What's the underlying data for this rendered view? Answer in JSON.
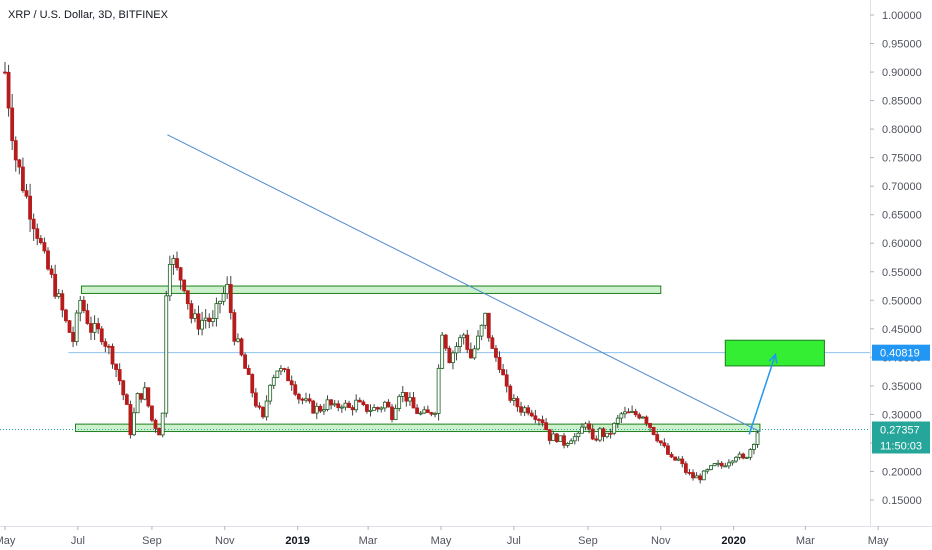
{
  "title": "XRP / U.S. Dollar, 3D, BITFINEX",
  "colors": {
    "up": "#26a69a",
    "down": "#ef5350",
    "wick": "#444444",
    "zone_fill": "#c8f0c8",
    "zone_stroke": "#1e7d1e",
    "target_fill": "#33ee33",
    "trendline": "#4a8cd0",
    "hline": "#8fc3ef",
    "current_line": "#26a69a",
    "badge_blue": "#2196f3",
    "badge_green": "#26a69a"
  },
  "price_badges": {
    "hline_value": "0.40819",
    "current_value": "0.27357",
    "countdown": "11:50:03"
  },
  "chart_data": {
    "type": "candlestick",
    "title": "XRP / U.S. Dollar, 3D, BITFINEX",
    "y_axis": {
      "side": "right",
      "ticks": [
        "1.00000",
        "0.95000",
        "0.90000",
        "0.85000",
        "0.80000",
        "0.75000",
        "0.70000",
        "0.65000",
        "0.60000",
        "0.55000",
        "0.50000",
        "0.45000",
        "0.40000",
        "0.35000",
        "0.30000",
        "0.25000",
        "0.20000",
        "0.15000"
      ],
      "ylim": [
        0.1,
        1.02
      ]
    },
    "x_axis": {
      "ticks": [
        {
          "label": "May",
          "t": 0,
          "bold": false
        },
        {
          "label": "Jul",
          "t": 61,
          "bold": false
        },
        {
          "label": "Sep",
          "t": 123,
          "bold": false
        },
        {
          "label": "Nov",
          "t": 184,
          "bold": false
        },
        {
          "label": "2019",
          "t": 245,
          "bold": true
        },
        {
          "label": "Mar",
          "t": 304,
          "bold": false
        },
        {
          "label": "May",
          "t": 365,
          "bold": false
        },
        {
          "label": "Jul",
          "t": 426,
          "bold": false
        },
        {
          "label": "Sep",
          "t": 488,
          "bold": false
        },
        {
          "label": "Nov",
          "t": 549,
          "bold": false
        },
        {
          "label": "2020",
          "t": 610,
          "bold": true
        },
        {
          "label": "Mar",
          "t": 670,
          "bold": false
        },
        {
          "label": "May",
          "t": 731,
          "bold": false
        }
      ],
      "xlim": [
        0,
        745
      ]
    },
    "candles_close_path": [
      [
        0,
        0.9
      ],
      [
        9,
        0.75
      ],
      [
        18,
        0.68
      ],
      [
        27,
        0.62
      ],
      [
        33,
        0.57
      ],
      [
        42,
        0.52
      ],
      [
        51,
        0.46
      ],
      [
        57,
        0.43
      ],
      [
        63,
        0.5
      ],
      [
        72,
        0.45
      ],
      [
        81,
        0.44
      ],
      [
        90,
        0.4
      ],
      [
        96,
        0.36
      ],
      [
        102,
        0.31
      ],
      [
        105,
        0.27
      ],
      [
        111,
        0.33
      ],
      [
        117,
        0.34
      ],
      [
        123,
        0.29
      ],
      [
        129,
        0.27
      ],
      [
        132,
        0.3
      ],
      [
        135,
        0.52
      ],
      [
        138,
        0.58
      ],
      [
        144,
        0.55
      ],
      [
        150,
        0.53
      ],
      [
        156,
        0.47
      ],
      [
        162,
        0.46
      ],
      [
        168,
        0.47
      ],
      [
        174,
        0.46
      ],
      [
        180,
        0.5
      ],
      [
        186,
        0.52
      ],
      [
        192,
        0.44
      ],
      [
        198,
        0.4
      ],
      [
        204,
        0.36
      ],
      [
        210,
        0.32
      ],
      [
        216,
        0.29
      ],
      [
        222,
        0.36
      ],
      [
        228,
        0.38
      ],
      [
        234,
        0.37
      ],
      [
        240,
        0.36
      ],
      [
        246,
        0.33
      ],
      [
        252,
        0.32
      ],
      [
        258,
        0.31
      ],
      [
        264,
        0.31
      ],
      [
        270,
        0.32
      ],
      [
        276,
        0.31
      ],
      [
        282,
        0.32
      ],
      [
        288,
        0.31
      ],
      [
        294,
        0.32
      ],
      [
        300,
        0.31
      ],
      [
        306,
        0.31
      ],
      [
        312,
        0.31
      ],
      [
        318,
        0.32
      ],
      [
        324,
        0.3
      ],
      [
        330,
        0.34
      ],
      [
        336,
        0.33
      ],
      [
        342,
        0.31
      ],
      [
        348,
        0.3
      ],
      [
        354,
        0.3
      ],
      [
        360,
        0.31
      ],
      [
        366,
        0.45
      ],
      [
        372,
        0.4
      ],
      [
        378,
        0.42
      ],
      [
        384,
        0.44
      ],
      [
        390,
        0.4
      ],
      [
        396,
        0.43
      ],
      [
        402,
        0.47
      ],
      [
        408,
        0.41
      ],
      [
        414,
        0.39
      ],
      [
        420,
        0.34
      ],
      [
        426,
        0.32
      ],
      [
        432,
        0.31
      ],
      [
        438,
        0.31
      ],
      [
        444,
        0.3
      ],
      [
        450,
        0.29
      ],
      [
        456,
        0.26
      ],
      [
        462,
        0.26
      ],
      [
        468,
        0.25
      ],
      [
        474,
        0.26
      ],
      [
        480,
        0.26
      ],
      [
        486,
        0.29
      ],
      [
        492,
        0.25
      ],
      [
        498,
        0.27
      ],
      [
        504,
        0.26
      ],
      [
        510,
        0.28
      ],
      [
        516,
        0.3
      ],
      [
        522,
        0.3
      ],
      [
        528,
        0.3
      ],
      [
        534,
        0.3
      ],
      [
        540,
        0.28
      ],
      [
        546,
        0.26
      ],
      [
        552,
        0.24
      ],
      [
        558,
        0.22
      ],
      [
        564,
        0.22
      ],
      [
        570,
        0.2
      ],
      [
        576,
        0.19
      ],
      [
        582,
        0.19
      ],
      [
        588,
        0.2
      ],
      [
        594,
        0.21
      ],
      [
        600,
        0.21
      ],
      [
        606,
        0.22
      ],
      [
        612,
        0.23
      ],
      [
        618,
        0.22
      ],
      [
        624,
        0.24
      ],
      [
        630,
        0.27
      ]
    ],
    "annotations": {
      "resistance_zone": {
        "t1": 64,
        "t2": 549,
        "y1": 0.512,
        "y2": 0.525
      },
      "support_zone": {
        "t1": 59,
        "t2": 632,
        "y1": 0.27,
        "y2": 0.283
      },
      "target_zone": {
        "t1": 603,
        "t2": 686,
        "y1": 0.385,
        "y2": 0.43
      },
      "trendline": {
        "t1": 136,
        "y1": 0.79,
        "t2": 632,
        "y2": 0.27
      },
      "horizontal_line": {
        "t1": 53,
        "t2": 712,
        "y": 0.40819
      },
      "arrow": {
        "t1": 623,
        "y1": 0.265,
        "t2": 645,
        "y2": 0.405
      },
      "current_price_line": {
        "y": 0.27357
      }
    }
  }
}
